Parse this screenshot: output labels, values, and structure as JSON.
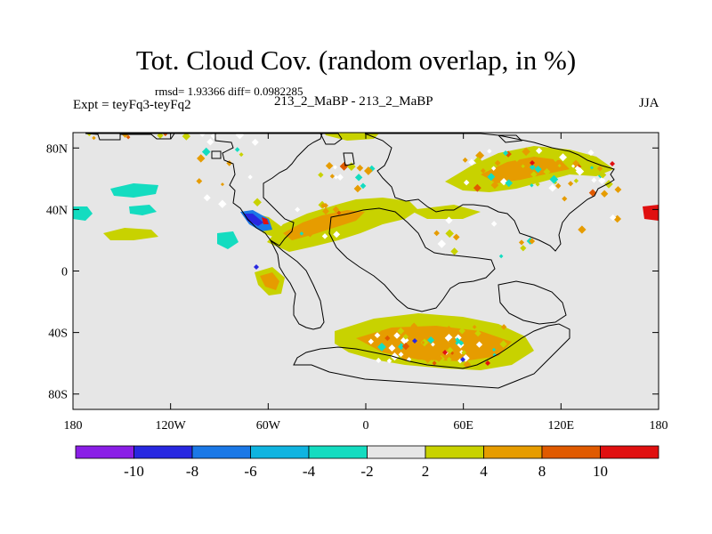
{
  "title": "Tot. Cloud Cov. (random overlap, in %)",
  "stats": "rmsd= 1.93366 diff= 0.0982285",
  "experiment": "Expt = teyFq3-teyFq2",
  "case_label": "213_2_MaBP - 213_2_MaBP",
  "season": "JJA",
  "map": {
    "projection": "cylindrical equidistant",
    "lon_range": [
      -180,
      180
    ],
    "lat_range": [
      -90,
      90
    ],
    "lon_ticks": [
      {
        "value": -180,
        "label": "180"
      },
      {
        "value": -120,
        "label": "120W"
      },
      {
        "value": -60,
        "label": "60W"
      },
      {
        "value": 0,
        "label": "0"
      },
      {
        "value": 60,
        "label": "60E"
      },
      {
        "value": 120,
        "label": "120E"
      },
      {
        "value": 180,
        "label": "180"
      }
    ],
    "lat_ticks": [
      {
        "value": 80,
        "label": "80N"
      },
      {
        "value": 40,
        "label": "40N"
      },
      {
        "value": 0,
        "label": "0"
      },
      {
        "value": -40,
        "label": "40S"
      },
      {
        "value": -80,
        "label": "80S"
      }
    ],
    "background_color": "#e6e6e6"
  },
  "colorbar": {
    "colors": [
      "#8a1ee6",
      "#2828e0",
      "#1a78e6",
      "#10b4e0",
      "#14dcc0",
      "#e6e6e6",
      "#c8d200",
      "#e69c00",
      "#e05a00",
      "#e01010"
    ],
    "labels": [
      "-10",
      "-8",
      "-6",
      "-4",
      "-2",
      "2",
      "4",
      "8",
      "10"
    ]
  }
}
